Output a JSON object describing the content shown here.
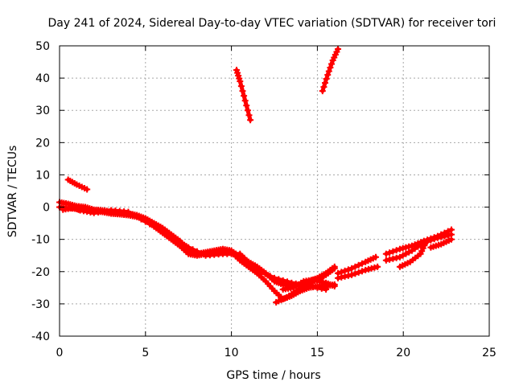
{
  "chart_data": {
    "type": "scatter",
    "title": "Day 241 of 2024, Sidereal Day-to-day VTEC variation (SDTVAR) for receiver tori",
    "xlabel": "GPS time / hours",
    "ylabel": "SDTVAR / TECUs",
    "xlim": [
      0,
      25
    ],
    "ylim": [
      -40,
      50
    ],
    "xticks": [
      "0",
      "5",
      "10",
      "15",
      "20",
      "25"
    ],
    "yticks": [
      "-40",
      "-30",
      "-20",
      "-10",
      "0",
      "10",
      "20",
      "30",
      "40",
      "50"
    ],
    "grid": true,
    "marker_color": "#ff0000",
    "series": [
      {
        "name": "trace-main-upper",
        "points": [
          [
            0.0,
            1.5
          ],
          [
            0.5,
            1.0
          ],
          [
            1.0,
            0.3
          ],
          [
            1.5,
            0.0
          ],
          [
            2.0,
            -0.8
          ],
          [
            2.5,
            -1.0
          ],
          [
            3.0,
            -1.5
          ],
          [
            3.5,
            -1.8
          ],
          [
            4.0,
            -2.0
          ],
          [
            4.5,
            -2.5
          ],
          [
            5.0,
            -3.5
          ],
          [
            5.5,
            -5.0
          ],
          [
            6.0,
            -6.5
          ],
          [
            6.5,
            -8.5
          ],
          [
            7.0,
            -10.5
          ],
          [
            7.5,
            -13.0
          ],
          [
            8.0,
            -14.5
          ],
          [
            8.5,
            -14.0
          ],
          [
            9.0,
            -13.5
          ],
          [
            9.5,
            -13.0
          ],
          [
            10.0,
            -13.5
          ],
          [
            10.5,
            -15.5
          ],
          [
            11.0,
            -17.0
          ],
          [
            11.5,
            -18.5
          ],
          [
            12.0,
            -20.5
          ],
          [
            12.5,
            -23.0
          ],
          [
            13.0,
            -24.0
          ],
          [
            13.5,
            -24.5
          ],
          [
            14.0,
            -24.0
          ],
          [
            14.5,
            -23.0
          ],
          [
            15.0,
            -22.0
          ],
          [
            15.5,
            -20.5
          ],
          [
            16.0,
            -18.5
          ]
        ]
      },
      {
        "name": "trace-main-lower",
        "points": [
          [
            0.0,
            0.0
          ],
          [
            0.5,
            -0.3
          ],
          [
            1.0,
            -0.5
          ],
          [
            1.5,
            -0.8
          ],
          [
            2.0,
            -1.2
          ],
          [
            2.5,
            -1.5
          ],
          [
            3.0,
            -2.0
          ],
          [
            3.5,
            -2.2
          ],
          [
            4.0,
            -2.5
          ],
          [
            4.5,
            -3.0
          ],
          [
            5.0,
            -4.0
          ],
          [
            5.5,
            -6.0
          ],
          [
            6.0,
            -8.0
          ],
          [
            6.5,
            -10.0
          ],
          [
            7.0,
            -12.0
          ],
          [
            7.5,
            -14.5
          ],
          [
            8.0,
            -15.0
          ],
          [
            8.5,
            -14.5
          ],
          [
            9.0,
            -14.0
          ],
          [
            9.5,
            -13.5
          ],
          [
            10.0,
            -14.0
          ],
          [
            10.5,
            -16.5
          ],
          [
            11.0,
            -18.5
          ],
          [
            11.5,
            -20.5
          ],
          [
            12.0,
            -23.0
          ],
          [
            12.5,
            -26.0
          ],
          [
            13.0,
            -28.5
          ],
          [
            13.5,
            -27.5
          ],
          [
            14.0,
            -26.0
          ],
          [
            14.5,
            -25.0
          ],
          [
            15.0,
            -24.5
          ],
          [
            15.5,
            -24.5
          ],
          [
            16.0,
            -24.0
          ]
        ]
      },
      {
        "name": "trace-main-third",
        "points": [
          [
            0.2,
            -0.8
          ],
          [
            0.8,
            -0.2
          ],
          [
            1.2,
            -1.0
          ],
          [
            2.0,
            -1.8
          ],
          [
            3.0,
            -1.0
          ],
          [
            4.0,
            -1.5
          ],
          [
            5.0,
            -4.5
          ],
          [
            6.0,
            -7.5
          ],
          [
            7.0,
            -11.0
          ],
          [
            7.5,
            -12.5
          ],
          [
            8.5,
            -15.0
          ],
          [
            9.5,
            -14.5
          ],
          [
            10.5,
            -14.5
          ],
          [
            11.5,
            -19.5
          ],
          [
            12.5,
            -22.0
          ],
          [
            13.5,
            -23.5
          ],
          [
            14.5,
            -24.5
          ],
          [
            15.5,
            -25.5
          ]
        ]
      },
      {
        "name": "trace-cross-a",
        "points": [
          [
            12.6,
            -29.5
          ],
          [
            13.2,
            -28.0
          ],
          [
            13.8,
            -26.0
          ],
          [
            14.4,
            -24.0
          ],
          [
            15.0,
            -22.5
          ],
          [
            15.5,
            -21.0
          ],
          [
            16.0,
            -19.0
          ]
        ]
      },
      {
        "name": "trace-cross-b",
        "points": [
          [
            13.0,
            -25.5
          ],
          [
            13.6,
            -25.0
          ],
          [
            14.2,
            -23.0
          ],
          [
            14.8,
            -22.5
          ],
          [
            15.5,
            -23.5
          ],
          [
            16.0,
            -24.5
          ]
        ]
      },
      {
        "name": "trace-right-a",
        "points": [
          [
            16.2,
            -20.5
          ],
          [
            17.0,
            -19.0
          ],
          [
            17.8,
            -17.0
          ],
          [
            18.4,
            -15.5
          ]
        ]
      },
      {
        "name": "trace-right-b",
        "points": [
          [
            16.2,
            -22.0
          ],
          [
            17.0,
            -21.0
          ],
          [
            17.8,
            -19.5
          ],
          [
            18.5,
            -18.5
          ]
        ]
      },
      {
        "name": "trace-right-c",
        "points": [
          [
            19.0,
            -14.5
          ],
          [
            19.8,
            -13.0
          ],
          [
            20.5,
            -12.0
          ],
          [
            21.2,
            -10.5
          ],
          [
            22.0,
            -9.0
          ],
          [
            22.8,
            -7.0
          ]
        ]
      },
      {
        "name": "trace-right-d",
        "points": [
          [
            19.0,
            -16.5
          ],
          [
            19.8,
            -15.5
          ],
          [
            20.5,
            -13.5
          ],
          [
            21.2,
            -11.0
          ],
          [
            22.0,
            -9.5
          ],
          [
            22.8,
            -8.5
          ]
        ]
      },
      {
        "name": "trace-right-e",
        "points": [
          [
            19.8,
            -18.5
          ],
          [
            20.4,
            -17.0
          ],
          [
            21.0,
            -14.5
          ],
          [
            21.3,
            -11.0
          ]
        ]
      },
      {
        "name": "trace-right-f",
        "points": [
          [
            21.6,
            -12.5
          ],
          [
            22.2,
            -11.5
          ],
          [
            22.8,
            -10.0
          ]
        ]
      },
      {
        "name": "trace-early-small",
        "points": [
          [
            0.5,
            8.5
          ],
          [
            1.0,
            7.0
          ],
          [
            1.6,
            5.5
          ]
        ]
      },
      {
        "name": "trace-spike-a",
        "points": [
          [
            10.3,
            42.5
          ],
          [
            10.5,
            39.0
          ],
          [
            10.8,
            33.0
          ],
          [
            11.1,
            27.0
          ]
        ]
      },
      {
        "name": "trace-spike-b",
        "points": [
          [
            15.3,
            36.0
          ],
          [
            15.6,
            41.0
          ],
          [
            15.9,
            45.5
          ],
          [
            16.2,
            49.0
          ]
        ]
      }
    ]
  }
}
